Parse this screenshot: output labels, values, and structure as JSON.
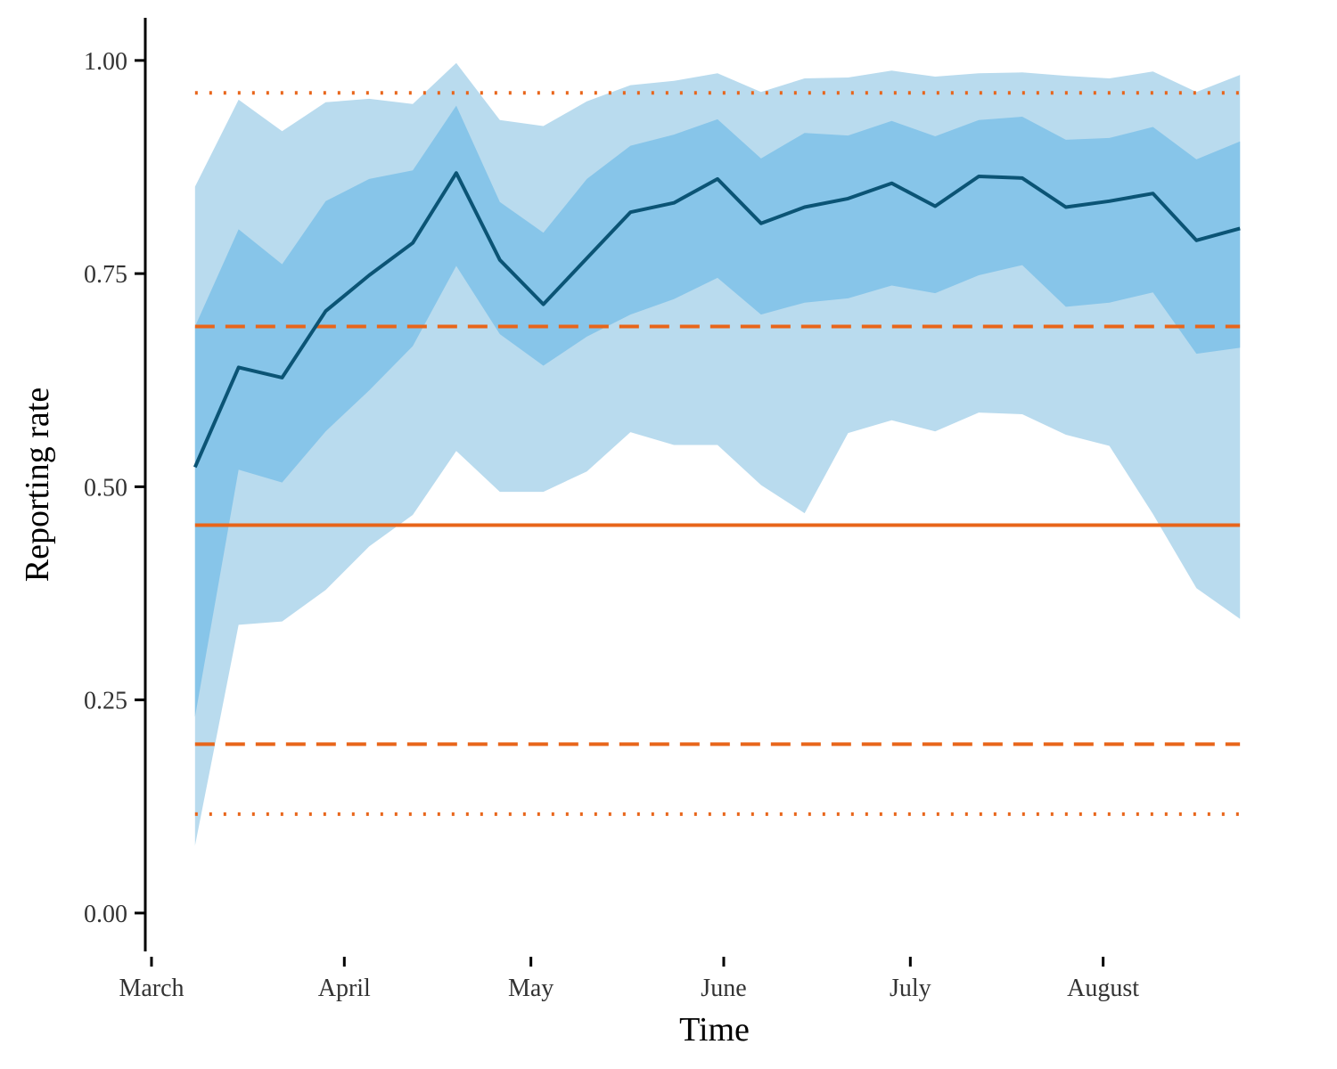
{
  "chart_data": {
    "type": "line",
    "xlabel": "Time",
    "ylabel": "Reporting rate",
    "x_tick_labels": [
      "March",
      "April",
      "May",
      "June",
      "July",
      "August"
    ],
    "x_tick_dates": [
      "2020-03-01",
      "2020-04-01",
      "2020-05-01",
      "2020-06-01",
      "2020-07-01",
      "2020-08-01"
    ],
    "y_ticks": [
      0,
      0.25,
      0.5,
      0.75,
      1.0
    ],
    "y_tick_labels": [
      "0.00",
      "0.25",
      "0.50",
      "0.75",
      "1.00"
    ],
    "xlim": [
      "2020-02-29",
      "2020-08-30"
    ],
    "ylim": [
      -0.045,
      1.05
    ],
    "grid": false,
    "colors": {
      "outer_band": "#b9dbee",
      "inner_band": "#87c5e9",
      "median_line": "#0b5475",
      "reference": "#e8651a"
    },
    "series": [
      {
        "x": [
          "2020-03-08",
          "2020-03-15",
          "2020-03-22",
          "2020-03-29",
          "2020-04-05",
          "2020-04-12",
          "2020-04-19",
          "2020-04-26",
          "2020-05-03",
          "2020-05-10",
          "2020-05-17",
          "2020-05-24",
          "2020-05-31",
          "2020-06-07",
          "2020-06-14",
          "2020-06-21",
          "2020-06-28",
          "2020-07-05",
          "2020-07-12",
          "2020-07-19",
          "2020-07-26",
          "2020-08-02",
          "2020-08-09",
          "2020-08-16",
          "2020-08-23"
        ],
        "median": [
          0.523,
          0.64,
          0.628,
          0.706,
          0.748,
          0.786,
          0.868,
          0.766,
          0.714,
          0.768,
          0.822,
          0.833,
          0.861,
          0.809,
          0.828,
          0.838,
          0.856,
          0.829,
          0.864,
          0.862,
          0.828,
          0.835,
          0.844,
          0.789,
          0.803
        ],
        "inner_lower": [
          0.23,
          0.52,
          0.505,
          0.565,
          0.613,
          0.665,
          0.759,
          0.679,
          0.642,
          0.676,
          0.702,
          0.72,
          0.745,
          0.702,
          0.716,
          0.721,
          0.736,
          0.727,
          0.748,
          0.76,
          0.711,
          0.716,
          0.728,
          0.656,
          0.663
        ],
        "inner_upper": [
          0.688,
          0.802,
          0.761,
          0.835,
          0.861,
          0.871,
          0.947,
          0.834,
          0.798,
          0.861,
          0.9,
          0.913,
          0.931,
          0.885,
          0.915,
          0.912,
          0.929,
          0.911,
          0.93,
          0.934,
          0.907,
          0.909,
          0.922,
          0.884,
          0.905
        ],
        "outer_lower": [
          0.079,
          0.338,
          0.342,
          0.379,
          0.43,
          0.467,
          0.542,
          0.494,
          0.494,
          0.518,
          0.564,
          0.549,
          0.549,
          0.502,
          0.469,
          0.563,
          0.578,
          0.565,
          0.587,
          0.585,
          0.561,
          0.548,
          0.468,
          0.381,
          0.345
        ],
        "outer_upper": [
          0.852,
          0.954,
          0.917,
          0.951,
          0.955,
          0.949,
          0.997,
          0.93,
          0.923,
          0.952,
          0.971,
          0.976,
          0.985,
          0.963,
          0.979,
          0.98,
          0.988,
          0.981,
          0.985,
          0.986,
          0.982,
          0.979,
          0.987,
          0.963,
          0.983
        ]
      }
    ],
    "reference_lines": [
      {
        "y": 0.455,
        "style": "solid"
      },
      {
        "y": 0.688,
        "style": "dashed"
      },
      {
        "y": 0.198,
        "style": "dashed"
      },
      {
        "y": 0.962,
        "style": "dotted"
      },
      {
        "y": 0.116,
        "style": "dotted"
      }
    ]
  }
}
